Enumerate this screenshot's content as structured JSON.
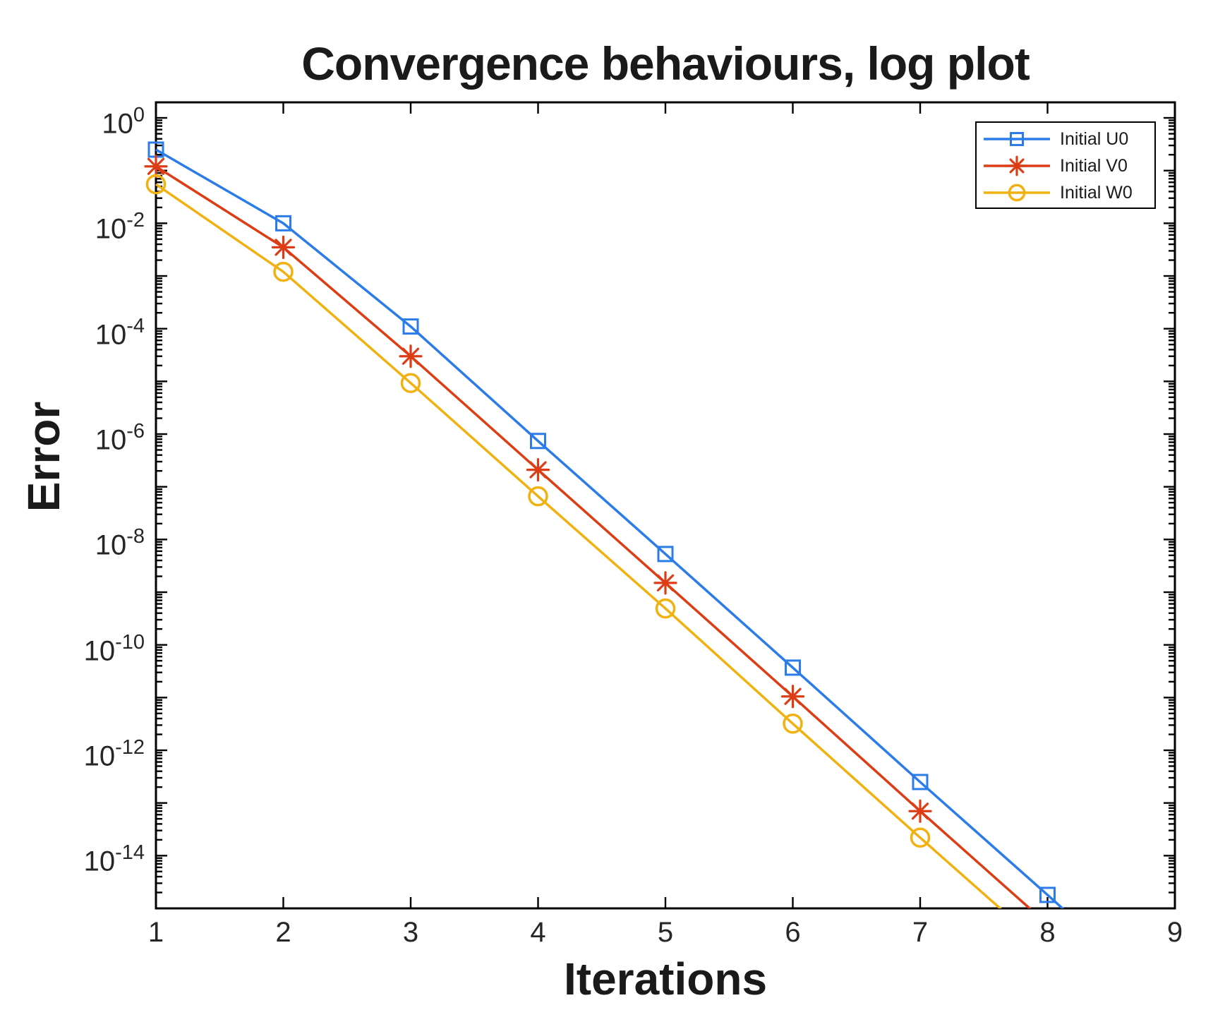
{
  "figure": {
    "background": "#ffffff"
  },
  "chart_data": {
    "type": "line",
    "title": "Convergence behaviours, log plot",
    "xlabel": "Iterations",
    "ylabel": "Error",
    "grid": false,
    "legend_position": "top-right",
    "x_axis": {
      "min": 1,
      "max": 9,
      "ticks": [
        1,
        2,
        3,
        4,
        5,
        6,
        7,
        8,
        9
      ]
    },
    "y_axis": {
      "scale": "log",
      "top_exponent": 0.295,
      "bottom_exponent": -15,
      "ylim": [
        1e-15,
        1.97
      ],
      "labeled_exponents": [
        0,
        -2,
        -4,
        -6,
        -8,
        -10,
        -12,
        -14
      ]
    },
    "axis_color": "#000000",
    "series": [
      {
        "name": "Initial U0",
        "color": "#2b7ce9",
        "marker": "square",
        "x": [
          1,
          2,
          3,
          4,
          5,
          6,
          7,
          8
        ],
        "y": [
          0.25,
          0.01,
          0.00011,
          7.4e-07,
          5.3e-09,
          3.7e-11,
          2.5e-13,
          1.8e-15
        ],
        "line_exit": {
          "x": 9,
          "y": 1.2e-17
        }
      },
      {
        "name": "Initial V0",
        "color": "#dc3d15",
        "marker": "asterisk",
        "x": [
          1,
          2,
          3,
          4,
          5,
          6,
          7
        ],
        "y": [
          0.12,
          0.0035,
          3e-05,
          2.1e-07,
          1.5e-09,
          1.05e-11,
          7e-14
        ],
        "line_exit": {
          "x": 8,
          "y": 5e-16
        }
      },
      {
        "name": "Initial W0",
        "color": "#f0b111",
        "marker": "circle",
        "x": [
          1,
          2,
          3,
          4,
          5,
          6,
          7
        ],
        "y": [
          0.055,
          0.0012,
          9.3e-06,
          6.6e-08,
          4.9e-10,
          3.2e-12,
          2.2e-14
        ],
        "line_exit": {
          "x": 8,
          "y": 1.6e-16
        }
      }
    ]
  }
}
